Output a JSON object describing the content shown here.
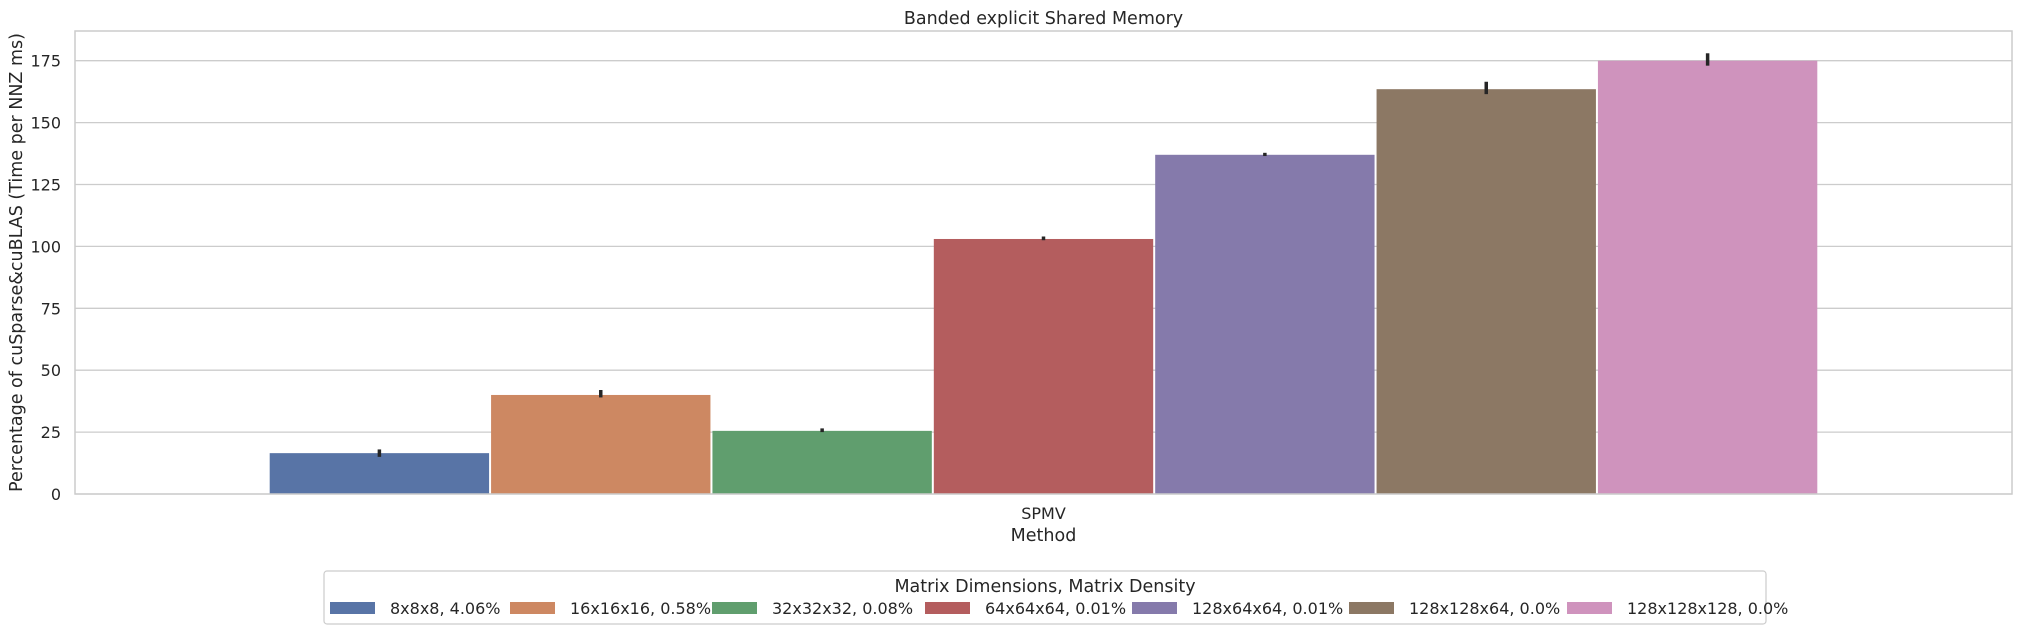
{
  "chart_data": {
    "type": "bar",
    "title": "Banded explicit Shared Memory",
    "xlabel": "Method",
    "ylabel": "Percentage of cuSparse&cuBLAS (Time per NNZ ms)",
    "categories": [
      "SPMV"
    ],
    "ylim": [
      0,
      187
    ],
    "yticks": [
      0,
      25,
      50,
      75,
      100,
      125,
      150,
      175
    ],
    "grid": true,
    "legend": {
      "title": "Matrix Dimensions, Matrix Density",
      "placement": "bottom-center"
    },
    "series": [
      {
        "name": "8x8x8, 4.06%",
        "values": [
          16.5
        ],
        "error": [
          [
            15.0,
            18.0
          ]
        ],
        "color": "#5874a6"
      },
      {
        "name": "16x16x16, 0.58%",
        "values": [
          40.0
        ],
        "error": [
          [
            39.0,
            42.0
          ]
        ],
        "color": "#cd8862"
      },
      {
        "name": "32x32x32, 0.08%",
        "values": [
          25.5
        ],
        "error": [
          [
            25.0,
            26.5
          ]
        ],
        "color": "#609e6e"
      },
      {
        "name": "64x64x64, 0.01%",
        "values": [
          103.0
        ],
        "error": [
          [
            102.5,
            104.0
          ]
        ],
        "color": "#b45d5e"
      },
      {
        "name": "128x64x64, 0.01%",
        "values": [
          137.0
        ],
        "error": [
          [
            136.5,
            137.8
          ]
        ],
        "color": "#857aab"
      },
      {
        "name": "128x128x64, 0.0%",
        "values": [
          163.5
        ],
        "error": [
          [
            161.5,
            166.5
          ]
        ],
        "color": "#8c7864"
      },
      {
        "name": "128x128x128, 0.0%",
        "values": [
          175.0
        ],
        "error": [
          [
            173.0,
            178.0
          ]
        ],
        "color": "#cf93bd"
      }
    ]
  }
}
